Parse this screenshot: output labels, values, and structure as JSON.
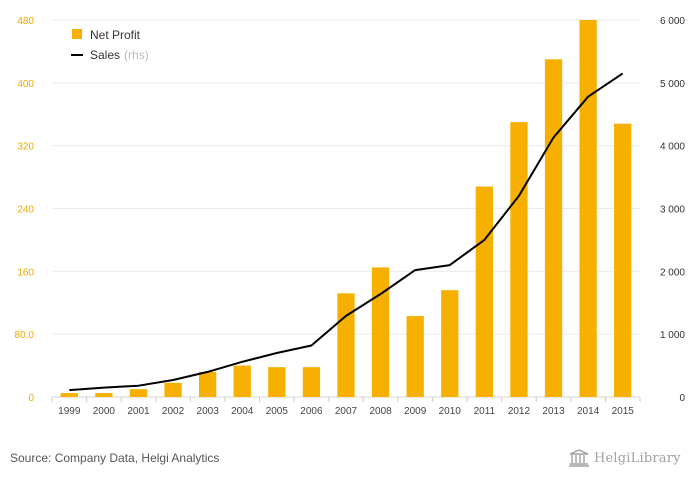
{
  "chart_data": {
    "type": "bar+line",
    "categories": [
      "1999",
      "2000",
      "2001",
      "2002",
      "2003",
      "2004",
      "2005",
      "2006",
      "2007",
      "2008",
      "2009",
      "2010",
      "2011",
      "2012",
      "2013",
      "2014",
      "2015"
    ],
    "series": [
      {
        "name": "Net Profit",
        "type": "bar",
        "axis": "left",
        "color": "#f7b000",
        "values": [
          5,
          5,
          10,
          18,
          32,
          40,
          38,
          38,
          132,
          165,
          103,
          136,
          268,
          350,
          430,
          480,
          348
        ]
      },
      {
        "name": "Sales",
        "legend_suffix": "(rhs)",
        "type": "line",
        "axis": "right",
        "color": "#000000",
        "values": [
          110,
          150,
          180,
          270,
          400,
          560,
          700,
          820,
          1290,
          1640,
          2020,
          2100,
          2500,
          3200,
          4130,
          4780,
          5150
        ]
      }
    ],
    "y_left": {
      "ylim": [
        0,
        480
      ],
      "ticks": [
        0,
        80,
        160,
        240,
        320,
        400,
        480
      ],
      "tick_labels": [
        "0",
        "80.0",
        "160",
        "240",
        "320",
        "400",
        "480"
      ]
    },
    "y_right": {
      "ylim": [
        0,
        6000
      ],
      "ticks": [
        0,
        1000,
        2000,
        3000,
        4000,
        5000,
        6000
      ],
      "tick_labels": [
        "0",
        "1 000",
        "2 000",
        "3 000",
        "4 000",
        "5 000",
        "6 000"
      ]
    },
    "grid": true,
    "legend": "top-left"
  },
  "footer": {
    "source": "Source: Company Data, Helgi Analytics",
    "brand": "HelgiLibrary"
  }
}
